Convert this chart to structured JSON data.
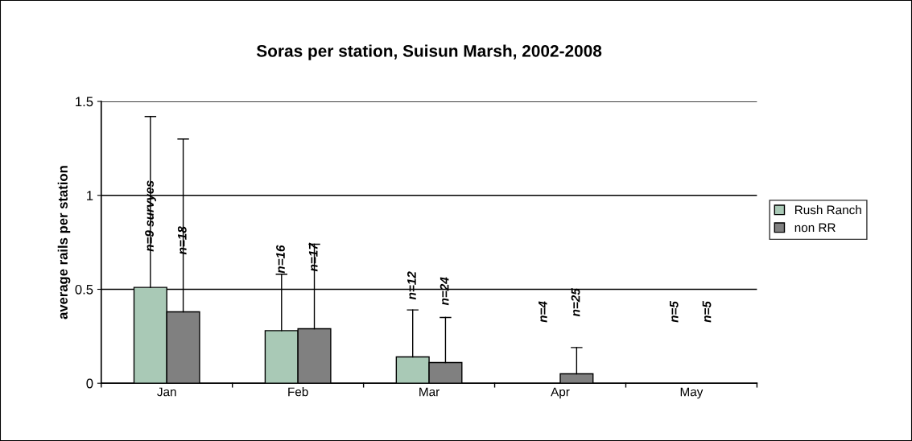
{
  "chart_data": {
    "type": "bar",
    "title": "Soras per station, Suisun Marsh, 2002-2008",
    "ylabel": "average rails per station",
    "categories": [
      "Jan",
      "Feb",
      "Mar",
      "Apr",
      "May"
    ],
    "series": [
      {
        "name": "Rush Ranch",
        "color": "#a9c9b6",
        "values": [
          0.51,
          0.28,
          0.14,
          0,
          0
        ],
        "errors": [
          [
            0.51,
            1.42
          ],
          [
            0.28,
            0.58
          ],
          [
            0.14,
            0.39
          ],
          null,
          null
        ]
      },
      {
        "name": "non RR",
        "color": "#808080",
        "values": [
          0.38,
          0.29,
          0.11,
          0.05,
          0
        ],
        "errors": [
          [
            0.38,
            1.3
          ],
          [
            0.29,
            0.74
          ],
          [
            0.11,
            0.35
          ],
          [
            0.05,
            0.19
          ],
          null
        ]
      }
    ],
    "annotations": [
      "n=9 survyes",
      "n=18",
      "n=16",
      "n=17",
      "n=12",
      "n=24",
      "n=4",
      "n=25",
      "n=5",
      "n=5"
    ],
    "ylim": [
      0,
      1.5
    ],
    "yticks": [
      0,
      0.5,
      1,
      1.5
    ],
    "grid": "y",
    "legend": "right"
  }
}
